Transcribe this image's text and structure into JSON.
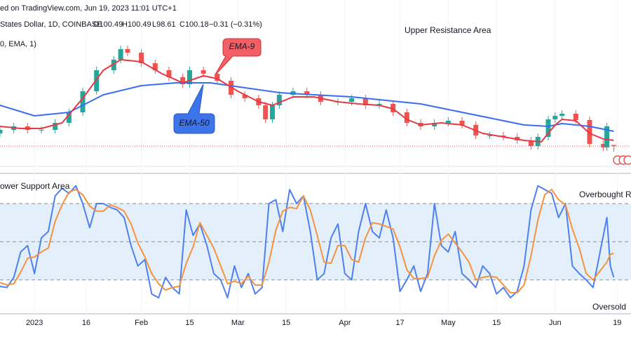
{
  "header": {
    "source": "ed on TradingView.com, Jun 19, 2023 11:01 UTC+1",
    "symbol": "States Dollar, 1D, COINBASE",
    "ohlc": [
      {
        "value": 100.49,
        "label": "O100.49"
      },
      {
        "value": 100.49,
        "label": "H100.49"
      },
      {
        "value": 98.61,
        "label": "L98.61"
      },
      {
        "value": 100.18,
        "label": "C100.18"
      }
    ],
    "change": "−0.31 (−0.31%)",
    "indicator": "0, EMA, 1)"
  },
  "chart_data": [
    {
      "type": "candlestick",
      "annotations": [
        "Upper Resistance Area",
        "EMA-9",
        "EMA-50"
      ],
      "up_color": "#26a69a",
      "down_color": "#ef5350",
      "xlim": [
        0,
        183
      ],
      "ylim": [
        92.8,
        141.8
      ],
      "xticks": [
        {
          "value": 10,
          "label": "2023"
        },
        {
          "value": 25,
          "label": "16"
        },
        {
          "value": 41,
          "label": "Feb"
        },
        {
          "value": 55,
          "label": "15"
        },
        {
          "value": 69,
          "label": "Mar"
        },
        {
          "value": 83,
          "label": "15"
        },
        {
          "value": 100,
          "label": "Apr"
        },
        {
          "value": 116,
          "label": "17"
        },
        {
          "value": 130,
          "label": "May"
        },
        {
          "value": 144,
          "label": "15"
        },
        {
          "value": 161,
          "label": "Jun"
        },
        {
          "value": 179,
          "label": "19"
        }
      ],
      "x": [
        0,
        4,
        8,
        12,
        16,
        20,
        24,
        28,
        33,
        35,
        37,
        41,
        45,
        49,
        53,
        55,
        59,
        63,
        67,
        71,
        75,
        77,
        79,
        81,
        85,
        89,
        93,
        98,
        102,
        106,
        110,
        114,
        118,
        122,
        126,
        130,
        134,
        138,
        142,
        146,
        150,
        154,
        156,
        159,
        161,
        163,
        167,
        171,
        175,
        176,
        178
      ],
      "open": [
        103.8,
        104.8,
        105.8,
        104.8,
        104.8,
        106.8,
        109.8,
        115.8,
        121.8,
        124.8,
        127.8,
        126.8,
        123.8,
        121.8,
        119.8,
        117.8,
        121.8,
        120.8,
        118.8,
        114.8,
        113.8,
        111.8,
        107.8,
        111.8,
        114.8,
        115.8,
        114.8,
        112.8,
        112.8,
        113.8,
        111.8,
        112.2,
        109.8,
        106.8,
        105.8,
        106.8,
        107.4,
        106.2,
        103.2,
        103.2,
        102.8,
        101.8,
        100.2,
        102.8,
        107.8,
        108.8,
        109.4,
        107.6,
        100.8,
        99.8,
        100.49
      ],
      "high": [
        105.8,
        106.8,
        106.8,
        105.8,
        107.8,
        110.8,
        116.8,
        122.8,
        125.8,
        128.8,
        128.8,
        127.8,
        124.8,
        122.8,
        120.8,
        122.8,
        122.8,
        121.8,
        119.8,
        115.8,
        114.8,
        112.8,
        112.8,
        115.8,
        116.8,
        116.8,
        115.8,
        113.8,
        114.8,
        114.8,
        113.2,
        113.2,
        110.8,
        107.8,
        107.8,
        108.4,
        108.4,
        107.2,
        104.2,
        104.2,
        103.8,
        102.8,
        103.8,
        108.8,
        109.8,
        110.4,
        110.4,
        108.6,
        101.8,
        106.8,
        100.49
      ],
      "low": [
        102.8,
        103.8,
        103.8,
        103.8,
        103.8,
        105.8,
        108.8,
        114.8,
        120.8,
        123.8,
        125.8,
        122.8,
        120.8,
        118.8,
        116.8,
        116.8,
        119.8,
        117.8,
        113.8,
        112.8,
        110.8,
        106.8,
        106.8,
        110.8,
        113.8,
        113.8,
        111.8,
        111.8,
        111.8,
        110.8,
        110.8,
        108.8,
        105.8,
        104.8,
        104.8,
        105.8,
        105.2,
        102.2,
        102.2,
        101.8,
        100.8,
        99.2,
        99.2,
        101.8,
        106.8,
        107.8,
        106.6,
        99.8,
        98.8,
        98.8,
        98.61
      ],
      "close": [
        104.8,
        105.8,
        104.8,
        104.8,
        106.8,
        109.8,
        115.8,
        121.8,
        124.8,
        127.8,
        126.8,
        123.8,
        121.8,
        119.8,
        117.8,
        121.8,
        120.8,
        118.8,
        114.8,
        113.8,
        111.8,
        107.8,
        111.8,
        114.8,
        115.8,
        114.8,
        112.8,
        112.8,
        113.8,
        111.8,
        112.2,
        109.8,
        106.8,
        105.8,
        106.8,
        107.4,
        106.2,
        103.2,
        103.2,
        102.8,
        101.8,
        100.2,
        102.8,
        107.8,
        108.8,
        109.4,
        107.6,
        100.8,
        99.8,
        105.8,
        100.18
      ],
      "series": [
        {
          "color": "#3a6df0",
          "x": [
            0,
            10,
            20,
            30,
            41,
            51,
            61,
            71,
            81,
            91,
            102,
            112,
            122,
            132,
            142,
            152,
            159,
            163,
            171,
            178
          ],
          "values": [
            111.8,
            108.8,
            109.8,
            114.8,
            117.4,
            118.2,
            118.2,
            116.8,
            115.4,
            114.8,
            114.2,
            113.2,
            112.2,
            110.2,
            108.2,
            106.2,
            105.8,
            106.6,
            105.8,
            104.4
          ]
        },
        {
          "color": "#e53945",
          "x": [
            0,
            6,
            12,
            18,
            24,
            30,
            35,
            41,
            47,
            53,
            59,
            63,
            69,
            75,
            79,
            85,
            91,
            98,
            104,
            110,
            114,
            118,
            122,
            128,
            134,
            140,
            146,
            152,
            157,
            161,
            163,
            167,
            171,
            175,
            178
          ],
          "values": [
            105.8,
            105.2,
            105.2,
            106.8,
            113.8,
            121.8,
            124.8,
            124.2,
            120.8,
            118.2,
            120.2,
            119.4,
            115.8,
            112.8,
            111.8,
            114.2,
            114.2,
            112.8,
            112.2,
            111.8,
            110.8,
            107.8,
            106.2,
            106.8,
            106.2,
            103.8,
            102.8,
            101.8,
            101.4,
            106.2,
            107.8,
            107.4,
            103.8,
            102.2,
            101.8
          ]
        }
      ]
    },
    {
      "type": "line",
      "annotations": [
        "ower Support Area",
        "Overbought Re",
        "Oversold"
      ],
      "xlim": [
        0,
        183
      ],
      "ylim": [
        0,
        100
      ],
      "levels": [
        20,
        50,
        80
      ],
      "band_color": "#e3f0fb",
      "x": [
        0,
        2,
        4,
        6,
        8,
        10,
        12,
        14,
        16,
        18,
        20,
        22,
        24,
        26,
        28,
        30,
        32,
        34,
        36,
        38,
        40,
        42,
        44,
        46,
        48,
        50,
        52,
        54,
        56,
        58,
        60,
        62,
        64,
        66,
        68,
        70,
        72,
        74,
        76,
        78,
        80,
        82,
        84,
        86,
        88,
        90,
        92,
        94,
        96,
        98,
        100,
        102,
        104,
        106,
        108,
        110,
        112,
        114,
        116,
        118,
        120,
        122,
        124,
        126,
        128,
        130,
        132,
        134,
        136,
        138,
        140,
        142,
        144,
        146,
        148,
        150,
        152,
        154,
        156,
        158,
        160,
        162,
        164,
        166,
        168,
        170,
        172,
        176,
        177,
        178
      ],
      "series": [
        {
          "color": "#4f7ff0",
          "values": [
            15,
            14,
            22,
            42,
            47,
            25,
            53,
            58,
            86,
            92,
            88,
            94,
            80,
            61,
            80,
            80,
            77,
            75,
            69,
            47,
            31,
            36,
            9,
            6,
            22,
            14,
            9,
            75,
            55,
            64,
            47,
            25,
            20,
            6,
            31,
            14,
            25,
            9,
            14,
            80,
            83,
            58,
            91,
            80,
            86,
            58,
            20,
            25,
            53,
            64,
            25,
            20,
            58,
            80,
            58,
            53,
            75,
            53,
            11,
            20,
            31,
            11,
            25,
            80,
            47,
            42,
            58,
            25,
            20,
            14,
            31,
            25,
            9,
            14,
            6,
            11,
            31,
            75,
            94,
            91,
            88,
            69,
            80,
            31,
            25,
            20,
            14,
            69,
            31,
            22
          ]
        },
        {
          "color": "#f5923e",
          "values": [
            18,
            16,
            17,
            26,
            37,
            38,
            42,
            45,
            66,
            79,
            89,
            91,
            87,
            78,
            74,
            74,
            79,
            77,
            74,
            64,
            49,
            38,
            25,
            17,
            12,
            14,
            15,
            33,
            46,
            65,
            55,
            45,
            31,
            17,
            19,
            17,
            23,
            16,
            16,
            34,
            59,
            74,
            77,
            76,
            86,
            75,
            55,
            34,
            33,
            47,
            47,
            36,
            34,
            53,
            65,
            64,
            62,
            60,
            46,
            28,
            21,
            21,
            22,
            39,
            51,
            56,
            49,
            42,
            34,
            20,
            22,
            23,
            22,
            16,
            10,
            10,
            16,
            39,
            67,
            87,
            91,
            83,
            79,
            60,
            45,
            25,
            20,
            34,
            40,
            41
          ]
        }
      ]
    }
  ]
}
